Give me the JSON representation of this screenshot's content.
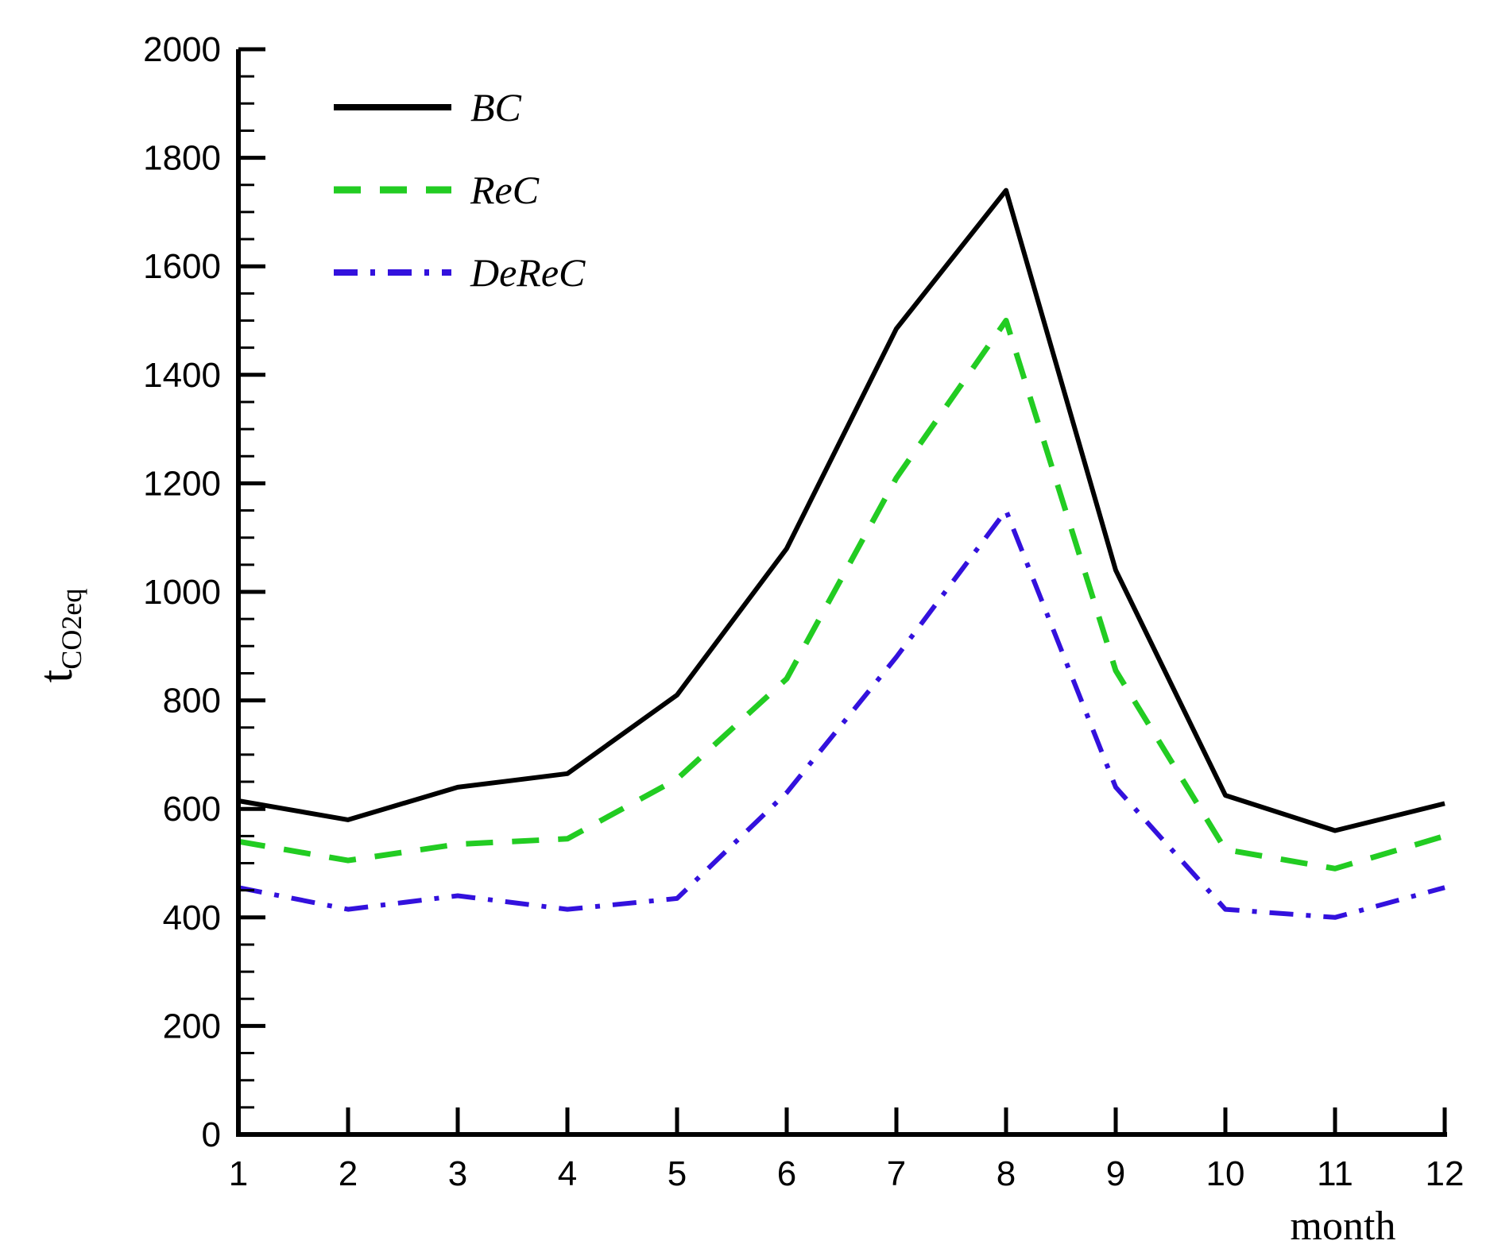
{
  "chart_data": {
    "type": "line",
    "title": "",
    "xlabel": "month",
    "ylabel": {
      "main": "t",
      "subscript": "CO2eq"
    },
    "x": [
      1,
      2,
      3,
      4,
      5,
      6,
      7,
      8,
      9,
      10,
      11,
      12
    ],
    "xlim": [
      1,
      12
    ],
    "ylim": [
      0,
      2000
    ],
    "yticks": [
      0,
      200,
      400,
      600,
      800,
      1000,
      1200,
      1400,
      1600,
      1800,
      2000
    ],
    "xticks": [
      1,
      2,
      3,
      4,
      5,
      6,
      7,
      8,
      9,
      10,
      11,
      12
    ],
    "grid": false,
    "legend_position": "top-left",
    "series": [
      {
        "name": "BC",
        "style": "solid",
        "color": "#000000",
        "values": [
          615,
          580,
          640,
          665,
          810,
          1080,
          1485,
          1740,
          1040,
          625,
          560,
          610
        ]
      },
      {
        "name": "ReC",
        "style": "dashed",
        "color": "#22cc22",
        "values": [
          540,
          505,
          535,
          545,
          655,
          840,
          1210,
          1500,
          855,
          525,
          490,
          550
        ]
      },
      {
        "name": "DeReC",
        "style": "dashdot",
        "color": "#3311dd",
        "values": [
          455,
          415,
          440,
          415,
          435,
          630,
          880,
          1150,
          640,
          415,
          400,
          455
        ]
      }
    ]
  }
}
